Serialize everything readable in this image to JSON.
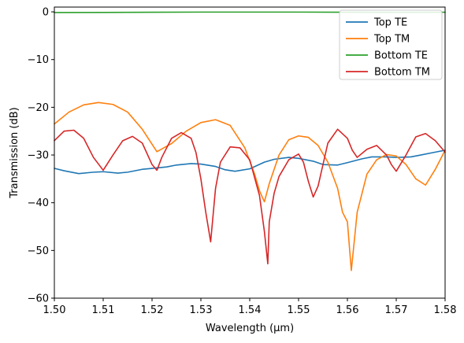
{
  "chart_data": {
    "type": "line",
    "title": "",
    "xlabel": "Wavelength (μm)",
    "ylabel": "Transmission (dB)",
    "xlim": [
      1.5,
      1.58
    ],
    "ylim": [
      -60,
      1
    ],
    "xticks": [
      1.5,
      1.51,
      1.52,
      1.53,
      1.54,
      1.55,
      1.56,
      1.57,
      1.58
    ],
    "xtick_labels": [
      "1.50",
      "1.51",
      "1.52",
      "1.53",
      "1.54",
      "1.55",
      "1.56",
      "1.57",
      "1.58"
    ],
    "yticks": [
      0,
      -10,
      -20,
      -30,
      -40,
      -50,
      -60
    ],
    "ytick_labels": [
      "0",
      "−10",
      "−20",
      "−30",
      "−40",
      "−50",
      "−60"
    ],
    "grid": false,
    "legend_position": "top-right",
    "series": [
      {
        "name": "Top TE",
        "color": "#1f77b4",
        "x": [
          1.5,
          1.502,
          1.505,
          1.508,
          1.51,
          1.513,
          1.515,
          1.518,
          1.52,
          1.523,
          1.525,
          1.528,
          1.53,
          1.533,
          1.535,
          1.537,
          1.54,
          1.543,
          1.545,
          1.548,
          1.55,
          1.553,
          1.555,
          1.558,
          1.56,
          1.563,
          1.565,
          1.568,
          1.57,
          1.573,
          1.575,
          1.578,
          1.58
        ],
        "y": [
          -32.8,
          -33.3,
          -33.9,
          -33.6,
          -33.5,
          -33.8,
          -33.6,
          -33.0,
          -32.8,
          -32.5,
          -32.1,
          -31.8,
          -31.9,
          -32.4,
          -33.1,
          -33.4,
          -32.9,
          -31.5,
          -30.9,
          -30.5,
          -30.7,
          -31.3,
          -32.0,
          -32.1,
          -31.6,
          -30.8,
          -30.4,
          -30.4,
          -30.5,
          -30.4,
          -30.0,
          -29.4,
          -29.0
        ]
      },
      {
        "name": "Top TM",
        "color": "#ff7f0e",
        "x": [
          1.5,
          1.503,
          1.506,
          1.509,
          1.512,
          1.515,
          1.518,
          1.521,
          1.524,
          1.527,
          1.53,
          1.533,
          1.536,
          1.539,
          1.541,
          1.542,
          1.543,
          1.544,
          1.546,
          1.548,
          1.55,
          1.552,
          1.554,
          1.556,
          1.558,
          1.559,
          1.56,
          1.5608,
          1.562,
          1.564,
          1.566,
          1.568,
          1.57,
          1.572,
          1.574,
          1.576,
          1.578,
          1.58
        ],
        "y": [
          -23.5,
          -21.0,
          -19.5,
          -19.0,
          -19.4,
          -21.0,
          -24.6,
          -29.3,
          -27.6,
          -25.0,
          -23.2,
          -22.6,
          -23.8,
          -28.5,
          -34.0,
          -37.5,
          -39.8,
          -36.0,
          -30.0,
          -26.8,
          -26.0,
          -26.3,
          -28.0,
          -31.5,
          -37.0,
          -42.0,
          -44.0,
          -54.2,
          -42.0,
          -34.0,
          -31.0,
          -29.9,
          -30.2,
          -32.0,
          -35.0,
          -36.3,
          -33.0,
          -29.0
        ]
      },
      {
        "name": "Bottom TE",
        "color": "#2ca02c",
        "x": [
          1.5,
          1.51,
          1.52,
          1.53,
          1.54,
          1.55,
          1.56,
          1.57,
          1.58
        ],
        "y": [
          -0.15,
          -0.12,
          -0.08,
          -0.05,
          -0.05,
          -0.05,
          -0.08,
          -0.1,
          -0.08
        ]
      },
      {
        "name": "Bottom TM",
        "color": "#d62728",
        "x": [
          1.5,
          1.502,
          1.504,
          1.506,
          1.508,
          1.51,
          1.512,
          1.514,
          1.516,
          1.518,
          1.52,
          1.521,
          1.522,
          1.524,
          1.526,
          1.528,
          1.529,
          1.53,
          1.531,
          1.532,
          1.533,
          1.534,
          1.536,
          1.538,
          1.54,
          1.542,
          1.543,
          1.5437,
          1.544,
          1.545,
          1.546,
          1.548,
          1.55,
          1.551,
          1.552,
          1.553,
          1.554,
          1.556,
          1.558,
          1.56,
          1.561,
          1.562,
          1.564,
          1.566,
          1.568,
          1.569,
          1.57,
          1.572,
          1.574,
          1.576,
          1.578,
          1.58
        ],
        "y": [
          -27.0,
          -25.0,
          -24.8,
          -26.5,
          -30.5,
          -33.2,
          -30.0,
          -27.0,
          -26.1,
          -27.5,
          -32.0,
          -33.2,
          -30.5,
          -26.5,
          -25.3,
          -26.5,
          -29.5,
          -35.0,
          -42.0,
          -48.2,
          -37.0,
          -31.5,
          -28.3,
          -28.5,
          -31.0,
          -38.5,
          -46.0,
          -52.8,
          -44.0,
          -38.0,
          -34.5,
          -31.0,
          -29.8,
          -31.5,
          -35.5,
          -38.8,
          -36.5,
          -27.5,
          -24.6,
          -26.5,
          -29.0,
          -30.5,
          -28.8,
          -28.0,
          -30.0,
          -32.0,
          -33.4,
          -30.0,
          -26.2,
          -25.5,
          -27.0,
          -29.4
        ]
      }
    ]
  }
}
